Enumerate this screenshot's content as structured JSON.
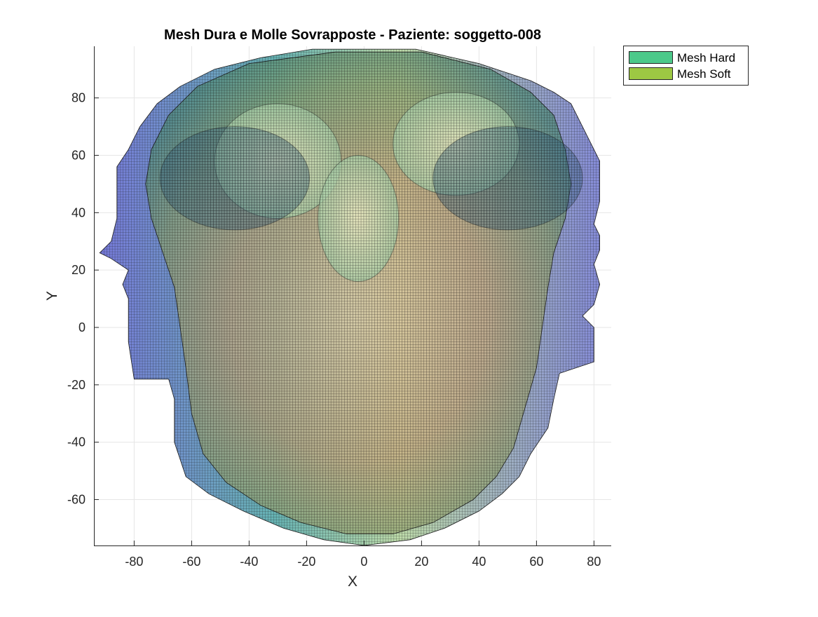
{
  "chart_data": {
    "type": "scatter",
    "title": "Mesh Dura e Molle Sovrapposte - Paziente: soggetto-008",
    "xlabel": "X",
    "ylabel": "Y",
    "xlim": [
      -94,
      86
    ],
    "ylim": [
      -76,
      98
    ],
    "xticks": [
      -80,
      -60,
      -40,
      -20,
      0,
      20,
      40,
      60,
      80
    ],
    "yticks": [
      -60,
      -40,
      -20,
      0,
      20,
      40,
      60,
      80
    ],
    "grid": true,
    "legend_position": "outside-top-right",
    "series": [
      {
        "name": "Mesh Hard",
        "color": "#4cc98a",
        "outline": [
          [
            -18,
            97
          ],
          [
            18,
            97
          ],
          [
            40,
            92
          ],
          [
            58,
            86
          ],
          [
            66,
            82
          ],
          [
            72,
            78
          ],
          [
            76,
            70
          ],
          [
            80,
            62
          ],
          [
            82,
            58
          ],
          [
            82,
            50
          ],
          [
            82,
            44
          ],
          [
            80,
            36
          ],
          [
            82,
            32
          ],
          [
            82,
            27
          ],
          [
            80,
            22
          ],
          [
            82,
            15
          ],
          [
            80,
            8
          ],
          [
            76,
            4
          ],
          [
            80,
            0
          ],
          [
            80,
            -12
          ],
          [
            74,
            -14
          ],
          [
            68,
            -16
          ],
          [
            66,
            -25
          ],
          [
            64,
            -35
          ],
          [
            58,
            -44
          ],
          [
            54,
            -52
          ],
          [
            48,
            -58
          ],
          [
            40,
            -64
          ],
          [
            28,
            -70
          ],
          [
            16,
            -74
          ],
          [
            0,
            -76
          ],
          [
            -14,
            -74
          ],
          [
            -28,
            -70
          ],
          [
            -42,
            -64
          ],
          [
            -54,
            -58
          ],
          [
            -62,
            -52
          ],
          [
            -66,
            -40
          ],
          [
            -66,
            -25
          ],
          [
            -68,
            -18
          ],
          [
            -80,
            -18
          ],
          [
            -82,
            -5
          ],
          [
            -82,
            10
          ],
          [
            -84,
            15
          ],
          [
            -82,
            20
          ],
          [
            -88,
            24
          ],
          [
            -92,
            26
          ],
          [
            -88,
            30
          ],
          [
            -86,
            38
          ],
          [
            -86,
            50
          ],
          [
            -86,
            56
          ],
          [
            -82,
            62
          ],
          [
            -78,
            70
          ],
          [
            -72,
            78
          ],
          [
            -64,
            84
          ],
          [
            -52,
            90
          ],
          [
            -36,
            94
          ]
        ]
      },
      {
        "name": "Mesh Soft",
        "color": "#9dc843",
        "outline": [
          [
            -40,
            92
          ],
          [
            -10,
            96
          ],
          [
            20,
            96
          ],
          [
            44,
            90
          ],
          [
            58,
            82
          ],
          [
            66,
            74
          ],
          [
            70,
            62
          ],
          [
            72,
            50
          ],
          [
            70,
            38
          ],
          [
            66,
            26
          ],
          [
            64,
            14
          ],
          [
            62,
            0
          ],
          [
            60,
            -14
          ],
          [
            56,
            -28
          ],
          [
            52,
            -42
          ],
          [
            46,
            -52
          ],
          [
            38,
            -60
          ],
          [
            24,
            -68
          ],
          [
            10,
            -72
          ],
          [
            -6,
            -72
          ],
          [
            -22,
            -68
          ],
          [
            -36,
            -62
          ],
          [
            -48,
            -54
          ],
          [
            -56,
            -44
          ],
          [
            -60,
            -30
          ],
          [
            -62,
            -14
          ],
          [
            -64,
            0
          ],
          [
            -66,
            14
          ],
          [
            -70,
            26
          ],
          [
            -74,
            38
          ],
          [
            -76,
            50
          ],
          [
            -74,
            62
          ],
          [
            -68,
            74
          ],
          [
            -58,
            84
          ]
        ]
      }
    ],
    "annotations": [
      {
        "label": "",
        "shape": "ellipse",
        "cx": -30,
        "cy": 58,
        "rx": 22,
        "ry": 20
      },
      {
        "label": "",
        "shape": "ellipse",
        "cx": 32,
        "cy": 64,
        "rx": 22,
        "ry": 18
      },
      {
        "label": "",
        "shape": "ellipse",
        "cx": -2,
        "cy": 38,
        "rx": 14,
        "ry": 22
      },
      {
        "label": "",
        "shape": "ellipse",
        "cx": -45,
        "cy": 52,
        "rx": 26,
        "ry": 18
      },
      {
        "label": "",
        "shape": "ellipse",
        "cx": 50,
        "cy": 52,
        "rx": 26,
        "ry": 18
      }
    ]
  },
  "legend": {
    "items": [
      {
        "label": "Mesh Hard",
        "color": "#4cc98a"
      },
      {
        "label": "Mesh Soft",
        "color": "#9dc843"
      }
    ]
  },
  "colors": {
    "axis": "#262626",
    "grid": "#e6e6e6",
    "mesh_line": "#1a1a1a"
  }
}
